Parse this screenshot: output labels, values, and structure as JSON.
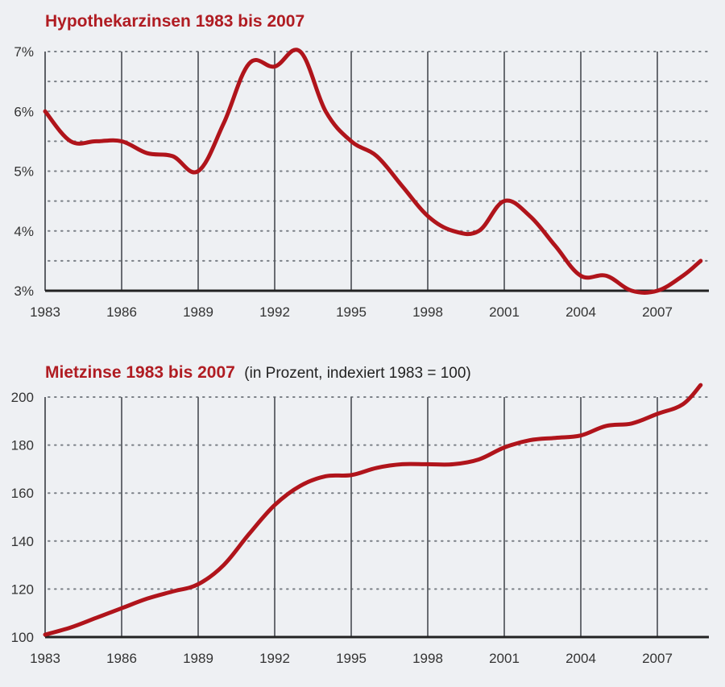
{
  "colors": {
    "accent": "#b01c22",
    "line": "#b0141b",
    "background": "#eef0f3"
  },
  "chart_data": [
    {
      "type": "line",
      "title": "Hypothekarzinsen 1983 bis 2007",
      "subtitle": "",
      "xlabel": "",
      "ylabel": "",
      "xlim": [
        1983,
        2008.7
      ],
      "ylim": [
        3,
        7
      ],
      "grid": true,
      "x_ticks": [
        "1983",
        "1986",
        "1989",
        "1992",
        "1995",
        "1998",
        "2001",
        "2004",
        "2007"
      ],
      "y_ticks": [
        {
          "value": 3,
          "label": "3%"
        },
        {
          "value": 4,
          "label": "4%"
        },
        {
          "value": 5,
          "label": "5%"
        },
        {
          "value": 6,
          "label": "6%"
        },
        {
          "value": 7,
          "label": "7%"
        }
      ],
      "minor_y_grid": [
        3.5,
        4.5,
        5.5,
        6.5
      ],
      "series": [
        {
          "name": "Hypothekarzinsen",
          "x": [
            1983,
            1984,
            1985,
            1986,
            1987,
            1988,
            1989,
            1990,
            1991,
            1992,
            1993,
            1994,
            1995,
            1996,
            1997,
            1998,
            1999,
            2000,
            2001,
            2002,
            2003,
            2004,
            2005,
            2006,
            2007,
            2008,
            2008.7
          ],
          "values": [
            6.0,
            5.5,
            5.5,
            5.5,
            5.3,
            5.25,
            5.0,
            5.8,
            6.8,
            6.75,
            7.0,
            6.0,
            5.5,
            5.25,
            4.75,
            4.25,
            4.0,
            4.0,
            4.5,
            4.25,
            3.75,
            3.25,
            3.25,
            3.0,
            3.0,
            3.25,
            3.5
          ]
        }
      ]
    },
    {
      "type": "line",
      "title": "Mietzinse 1983 bis 2007",
      "subtitle": "(in Prozent, indexiert 1983 = 100)",
      "xlabel": "",
      "ylabel": "",
      "xlim": [
        1983,
        2008.7
      ],
      "ylim": [
        100,
        200
      ],
      "grid": true,
      "x_ticks": [
        "1983",
        "1986",
        "1989",
        "1992",
        "1995",
        "1998",
        "2001",
        "2004",
        "2007"
      ],
      "y_ticks": [
        {
          "value": 100,
          "label": "100"
        },
        {
          "value": 120,
          "label": "120"
        },
        {
          "value": 140,
          "label": "140"
        },
        {
          "value": 160,
          "label": "160"
        },
        {
          "value": 180,
          "label": "180"
        },
        {
          "value": 200,
          "label": "200"
        }
      ],
      "minor_y_grid": [],
      "series": [
        {
          "name": "Mietzinse",
          "x": [
            1983,
            1984,
            1985,
            1986,
            1987,
            1988,
            1989,
            1990,
            1991,
            1992,
            1993,
            1994,
            1995,
            1996,
            1997,
            1998,
            1999,
            2000,
            2001,
            2002,
            2003,
            2004,
            2005,
            2006,
            2007,
            2008,
            2008.7
          ],
          "values": [
            101,
            104,
            108,
            112,
            116,
            119,
            122,
            130,
            143,
            155,
            163,
            167,
            167.5,
            170.5,
            172,
            172,
            172,
            174,
            179,
            182,
            183,
            184,
            188,
            189,
            193,
            197,
            205
          ]
        }
      ]
    }
  ]
}
